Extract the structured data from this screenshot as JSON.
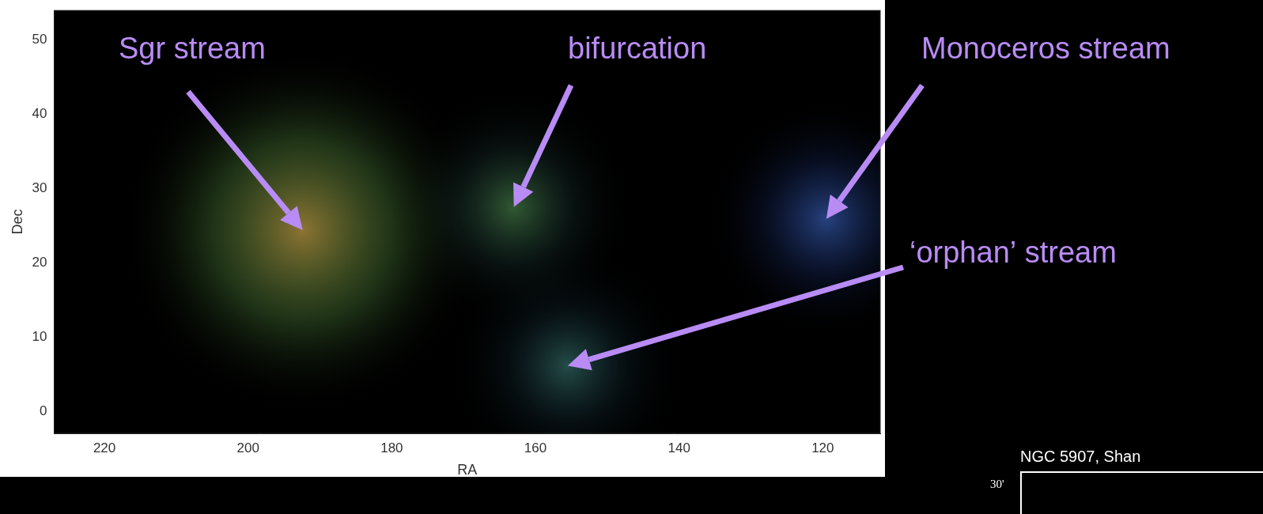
{
  "chart_data": {
    "type": "scatter",
    "x_label": "RA",
    "y_label": "Dec",
    "xlim": [
      227,
      112
    ],
    "ylim": [
      -3,
      54
    ],
    "xticks": [
      220,
      200,
      180,
      160,
      140,
      120
    ],
    "yticks": [
      0,
      10,
      20,
      30,
      40,
      50
    ],
    "grid": false,
    "annotations": [
      {
        "text": "Sgr stream",
        "x": 192.4,
        "y": 24.4,
        "color": "#b98cf5"
      },
      {
        "text": "bifurcation",
        "x": 163,
        "y": 27.5,
        "color": "#b98cf5"
      },
      {
        "text": "Monoceros stream",
        "x": 119.5,
        "y": 25.9,
        "color": "#b98cf5"
      },
      {
        "text": "‘orphan’ stream",
        "x": 155.5,
        "y": 6.1,
        "color": "#b98cf5"
      }
    ]
  },
  "inset": {
    "title": "NGC 5907, Shan",
    "tick_label": "30'"
  }
}
